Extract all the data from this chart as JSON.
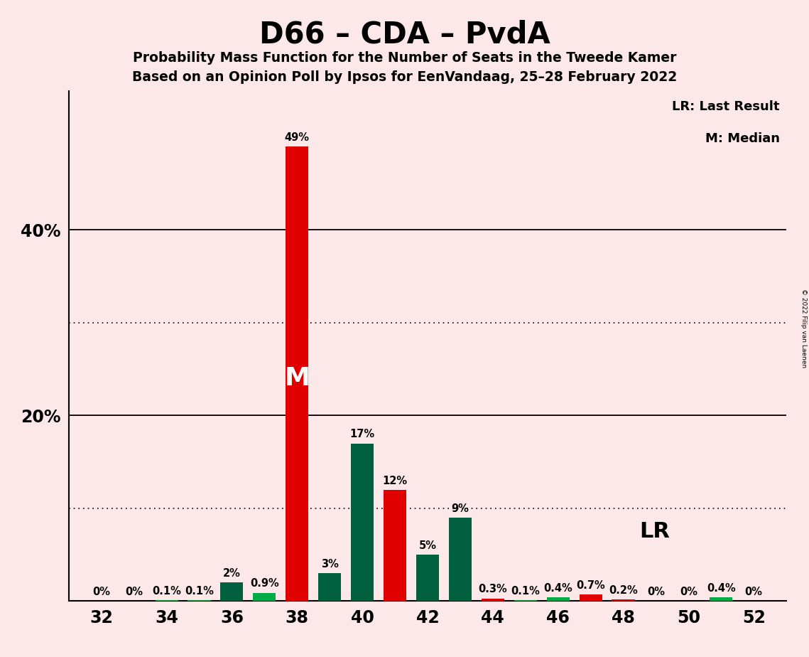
{
  "title": "D66 – CDA – PvdA",
  "subtitle1": "Probability Mass Function for the Number of Seats in the Tweede Kamer",
  "subtitle2": "Based on an Opinion Poll by Ipsos for EenVandaag, 25–28 February 2022",
  "copyright": "© 2022 Filip van Laenen",
  "background_color": "#fce8e8",
  "red_color": "#e00000",
  "dark_green_color": "#006040",
  "light_green_color": "#00aa44",
  "seats": [
    32,
    33,
    34,
    35,
    36,
    37,
    38,
    39,
    40,
    41,
    42,
    43,
    44,
    45,
    46,
    47,
    48,
    49,
    50,
    51,
    52
  ],
  "values": [
    0.0,
    0.0,
    0.1,
    0.1,
    2.0,
    0.9,
    49.0,
    3.0,
    17.0,
    12.0,
    5.0,
    9.0,
    0.3,
    0.1,
    0.4,
    0.7,
    0.2,
    0.0,
    0.0,
    0.4,
    0.0
  ],
  "colors": [
    "G",
    "G",
    "G",
    "G",
    "G",
    "G",
    "R",
    "G",
    "G",
    "R",
    "G",
    "G",
    "R",
    "G",
    "G",
    "R",
    "R",
    "G",
    "G",
    "G",
    "G"
  ],
  "median_seat": 38,
  "lr_seat": 47,
  "xtick_seats": [
    32,
    34,
    36,
    38,
    40,
    42,
    44,
    46,
    48,
    50,
    52
  ],
  "ylim": [
    0,
    55
  ],
  "solid_hlines": [
    20,
    40
  ],
  "dotted_hlines": [
    10,
    30
  ]
}
